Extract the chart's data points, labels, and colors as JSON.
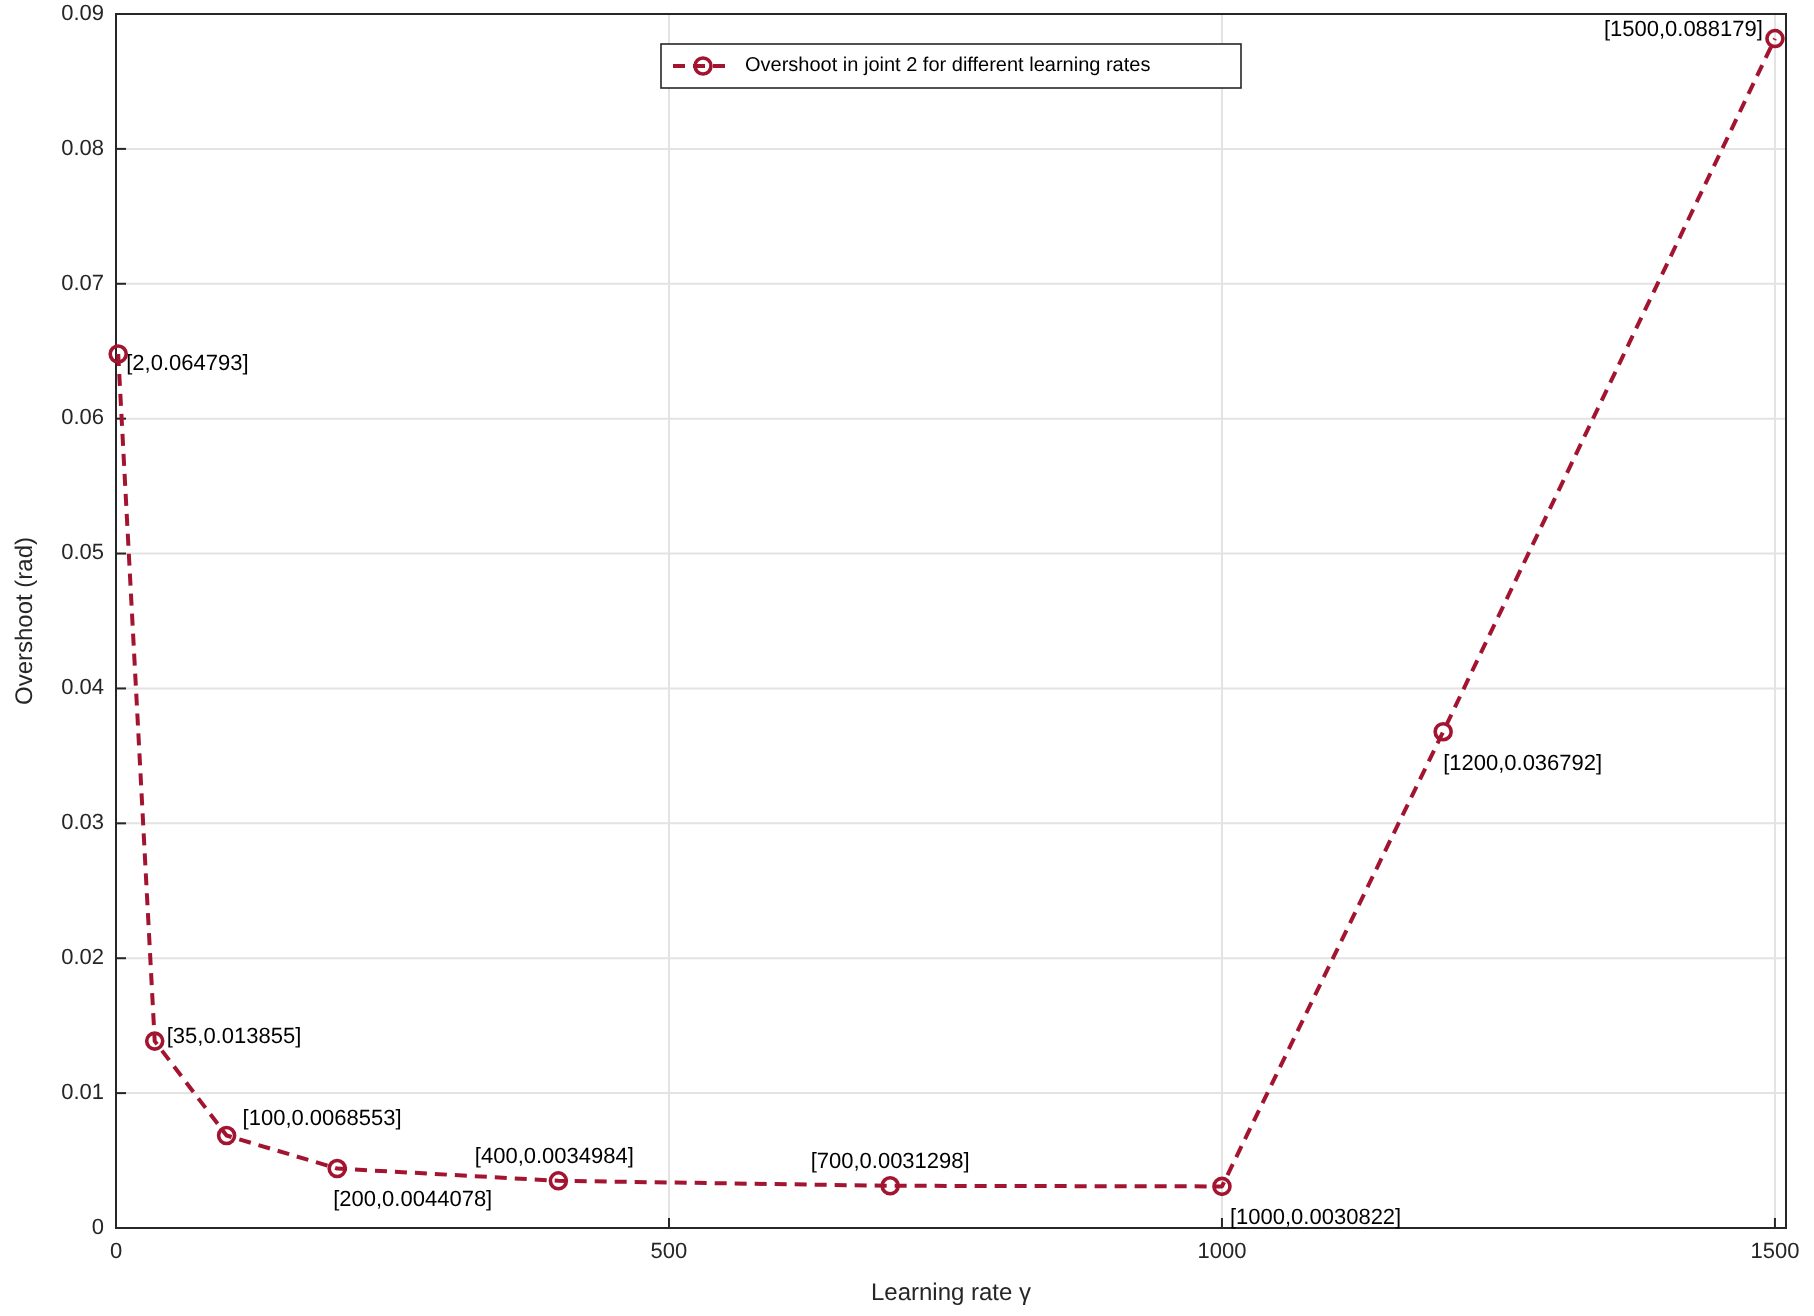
{
  "chart_data": {
    "type": "line",
    "xlabel": "Learning rate γ",
    "ylabel": "Overshoot (rad)",
    "x": [
      2,
      35,
      100,
      200,
      400,
      700,
      1000,
      1200,
      1500
    ],
    "series": [
      {
        "name": "Overshoot in joint 2 for different learning rates",
        "color": "#a2142f",
        "values": [
          0.064793,
          0.013855,
          0.0068553,
          0.0044078,
          0.0034984,
          0.0031298,
          0.0030822,
          0.036792,
          0.088179
        ],
        "value_labels": [
          "[2,0.064793]",
          "[35,0.013855]",
          "[100,0.0068553]",
          "[200,0.0044078]",
          "[400,0.0034984]",
          "[700,0.0031298]",
          "[1000,0.0030822]",
          "[1200,0.036792]",
          "[1500,0.088179]"
        ]
      }
    ],
    "xlim": [
      0,
      1510
    ],
    "xticks": [
      0,
      500,
      1000,
      1500
    ],
    "ylim": [
      0,
      0.09
    ],
    "yticks": [
      0,
      0.01,
      0.02,
      0.03,
      0.04,
      0.05,
      0.06,
      0.07,
      0.08,
      0.09
    ],
    "grid": true,
    "legend": "top",
    "marker": "circle",
    "line_style": "dashed"
  }
}
